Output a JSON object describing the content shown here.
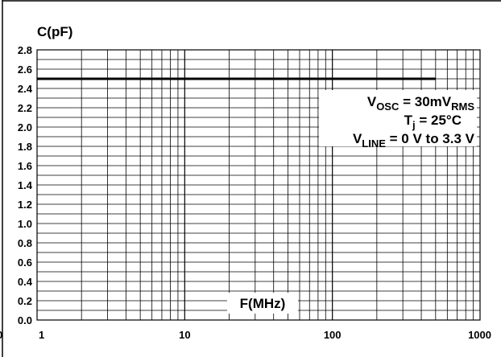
{
  "chart_data": {
    "type": "line",
    "title": "",
    "xlabel": "F(MHz)",
    "ylabel": "C(pF)",
    "xscale": "log",
    "xlim": [
      1,
      1000
    ],
    "ylim": [
      0,
      2.8
    ],
    "x_ticks": [
      "1",
      "10",
      "100",
      "1000"
    ],
    "y_ticks": [
      "0.0",
      "0.2",
      "0.4",
      "0.6",
      "0.8",
      "1.0",
      "1.2",
      "1.4",
      "1.6",
      "1.8",
      "2.0",
      "2.2",
      "2.4",
      "2.6",
      "2.8"
    ],
    "grid": true,
    "series": [
      {
        "x": [
          1,
          500
        ],
        "y": [
          2.5,
          2.5
        ]
      }
    ],
    "annotations": {
      "osc": {
        "prefix": "V",
        "sub": "OSC",
        "mid": " = 30mV",
        "sub2": "RMS"
      },
      "tj": {
        "prefix": "T",
        "sub": "j",
        "rest": " = 25°C"
      },
      "vline": {
        "prefix": "V",
        "sub": "LINE",
        "rest": " = 0 V to 3.3 V"
      }
    },
    "edge_label": "0"
  }
}
